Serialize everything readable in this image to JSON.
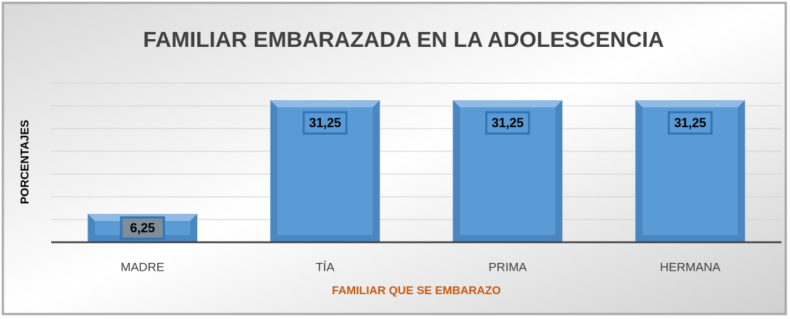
{
  "chart_data": {
    "type": "bar",
    "title": "FAMILIAR EMBARAZADA EN LA ADOLESCENCIA",
    "xlabel": "FAMILIAR QUE SE EMBARAZO",
    "ylabel": "PORCENTAJES",
    "categories": [
      "MADRE",
      "TÍA",
      "PRIMA",
      "HERMANA"
    ],
    "values": [
      6.25,
      31.25,
      31.25,
      31.25
    ],
    "value_labels": [
      "6,25",
      "31,25",
      "31,25",
      "31,25"
    ],
    "color": "#5b9bd5",
    "ylim": [
      0,
      35
    ],
    "yticks": [
      0,
      5,
      10,
      15,
      20,
      25,
      30,
      35
    ],
    "grid": true
  }
}
